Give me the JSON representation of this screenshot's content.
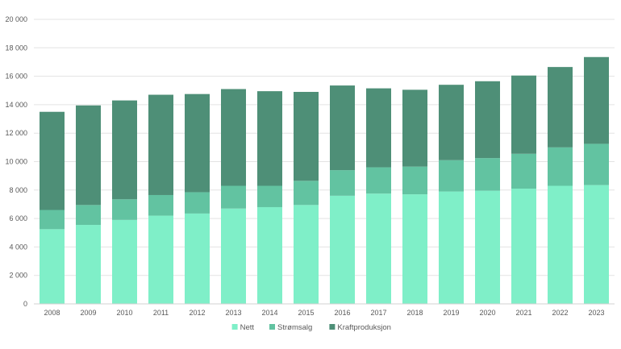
{
  "chart_data": {
    "type": "bar",
    "stacked": true,
    "categories": [
      "2008",
      "2009",
      "2010",
      "2011",
      "2012",
      "2013",
      "2014",
      "2015",
      "2016",
      "2017",
      "2018",
      "2019",
      "2020",
      "2021",
      "2022",
      "2023"
    ],
    "series": [
      {
        "name": "Nett",
        "color": "#7FEFC8",
        "values": [
          5250,
          5550,
          5900,
          6200,
          6350,
          6700,
          6800,
          6950,
          7600,
          7750,
          7700,
          7900,
          7950,
          8100,
          8300,
          8350
        ]
      },
      {
        "name": "Strømsalg",
        "color": "#62C3A1",
        "values": [
          1350,
          1400,
          1450,
          1450,
          1500,
          1600,
          1500,
          1700,
          1800,
          1850,
          1950,
          2200,
          2300,
          2450,
          2700,
          2900
        ]
      },
      {
        "name": "Kraftproduksjon",
        "color": "#4E8F77",
        "values": [
          6900,
          7000,
          6950,
          7050,
          6900,
          6800,
          6650,
          6250,
          5950,
          5550,
          5400,
          5300,
          5400,
          5500,
          5650,
          6100
        ]
      }
    ],
    "y_ticks": [
      "0",
      "2 000",
      "4 000",
      "6 000",
      "8 000",
      "10 000",
      "12 000",
      "14 000",
      "16 000",
      "18 000",
      "20 000"
    ],
    "ylim": [
      0,
      20000
    ],
    "grid": true,
    "legend_position": "bottom"
  }
}
